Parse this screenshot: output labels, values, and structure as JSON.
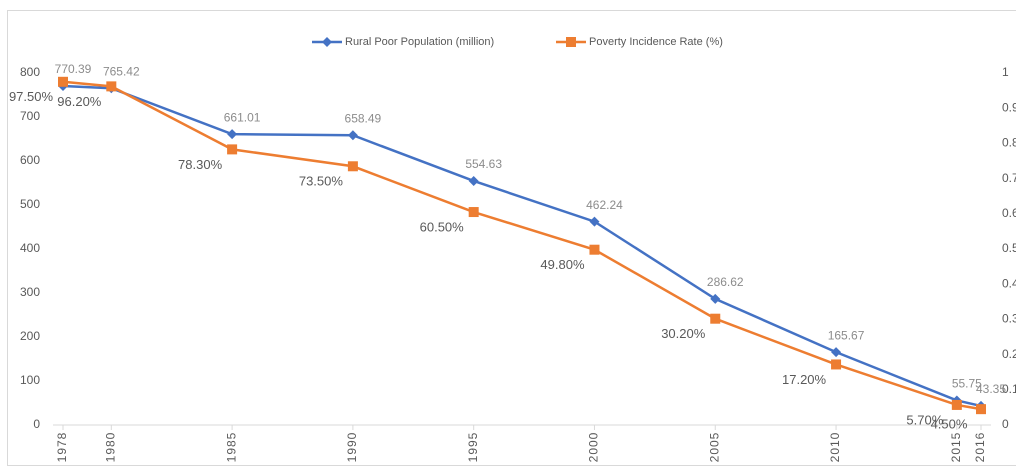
{
  "chart_data": {
    "type": "line",
    "x": [
      1978,
      1980,
      1985,
      1990,
      1995,
      2000,
      2005,
      2010,
      2015,
      2016
    ],
    "xlim": [
      1978,
      2016
    ],
    "xticks": [
      1978,
      1980,
      1985,
      1990,
      1995,
      2000,
      2005,
      2010,
      2015,
      2016
    ],
    "ylim": [
      0,
      800
    ],
    "yticks": [
      0,
      100,
      200,
      300,
      400,
      500,
      600,
      700,
      800
    ],
    "y2lim": [
      0,
      1
    ],
    "y2ticks": [
      0,
      0.1,
      0.2,
      0.3,
      0.4,
      0.5,
      0.6,
      0.7,
      0.8,
      0.9,
      1
    ],
    "grid": false,
    "legend": "top",
    "series": [
      {
        "name": "Rural Poor Population (million)",
        "color": "#4472c4",
        "marker": "diamond",
        "values": [
          770.39,
          765.42,
          661.01,
          658.49,
          554.63,
          462.24,
          286.62,
          165.67,
          55.75,
          43.35
        ]
      },
      {
        "name": "Poverty Incidence Rate (%)",
        "color": "#ed7d31",
        "marker": "square",
        "axis": "y2",
        "values": [
          0.975,
          0.962,
          0.783,
          0.735,
          0.605,
          0.498,
          0.302,
          0.172,
          0.057,
          0.045
        ],
        "value_labels": [
          "97.50%",
          "96.20%",
          "78.30%",
          "73.50%",
          "60.50%",
          "49.80%",
          "30.20%",
          "17.20%",
          "5.70%",
          "4.50%"
        ]
      }
    ]
  }
}
